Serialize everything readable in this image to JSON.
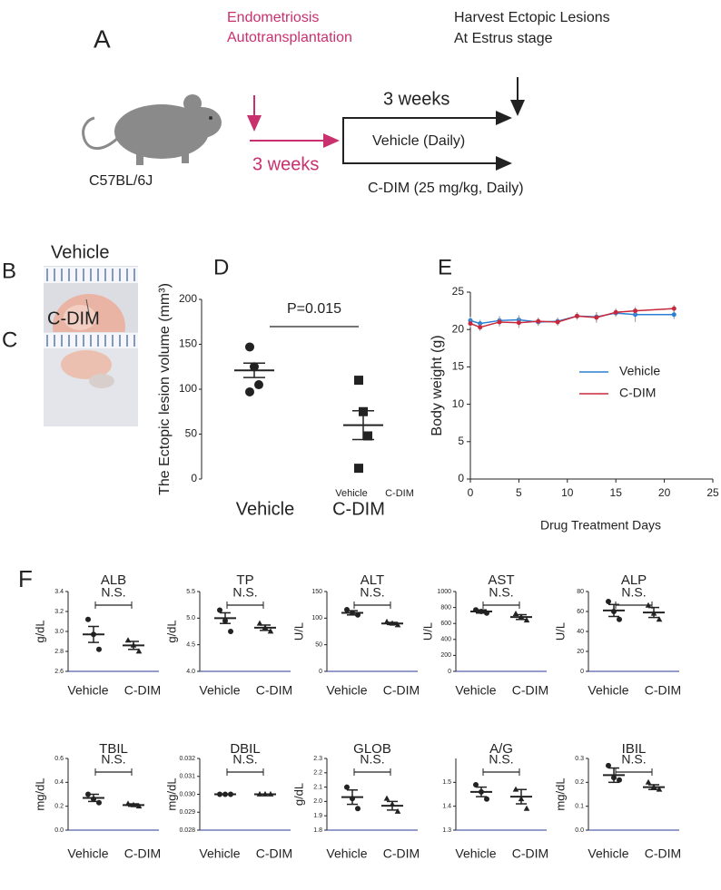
{
  "panel_a": {
    "label": "A",
    "procedure": [
      "Endometriosis",
      "Autotransplantation"
    ],
    "harvest": [
      "Harvest Ectopic Lesions",
      "At Estrus stage"
    ],
    "strain": "C57BL/6J",
    "pre_period": "3 weeks",
    "treatment_period": "3 weeks",
    "vehicle_arm": "Vehicle (Daily)",
    "cdim_arm": "C-DIM (25 mg/kg, Daily)"
  },
  "panel_b": {
    "label": "B",
    "title": "Vehicle"
  },
  "panel_c": {
    "label": "C",
    "title": "C-DIM"
  },
  "panel_f": {
    "label": "F"
  },
  "chart_data": [
    {
      "type": "dotplot",
      "panel": "D",
      "y_label": "The Ectopic lesion volume (mm³)",
      "annotation": "P=0.015",
      "categories": [
        "Vehicle",
        "C-DIM"
      ],
      "group_labels": [
        "Vehicle",
        "C-DIM"
      ],
      "markers": [
        "circle",
        "square"
      ],
      "ylim": [
        0,
        200
      ],
      "yticks": [
        0,
        50,
        100,
        150,
        200
      ],
      "groups": [
        {
          "points": [
            147,
            125,
            105,
            97
          ],
          "mean": 121,
          "sem": 8
        },
        {
          "points": [
            110,
            75,
            48,
            12
          ],
          "mean": 60,
          "sem": 16
        }
      ]
    },
    {
      "type": "line",
      "panel": "E",
      "x_label": "Drug Treatment Days",
      "y_label": "Body weight (g)",
      "legend": "center-right",
      "x": [
        0,
        1,
        3,
        5,
        7,
        9,
        11,
        13,
        15,
        17,
        21
      ],
      "xlim": [
        0,
        25
      ],
      "xticks": [
        0,
        5,
        10,
        15,
        20,
        25
      ],
      "ylim": [
        0,
        25
      ],
      "yticks": [
        0,
        5,
        10,
        15,
        20,
        25
      ],
      "series": [
        {
          "name": "Vehicle",
          "color": "#2a7fd4",
          "values": [
            21.2,
            20.8,
            21.2,
            21.3,
            21.0,
            21.1,
            21.8,
            21.7,
            22.2,
            22.0,
            22.0
          ],
          "errors": [
            0.5,
            0.5,
            0.6,
            0.6,
            0.5,
            0.5,
            0.5,
            0.6,
            0.5,
            1.0,
            0.6
          ]
        },
        {
          "name": "C-DIM",
          "color": "#c8283c",
          "values": [
            20.8,
            20.3,
            21.0,
            20.9,
            21.1,
            21.0,
            21.8,
            21.6,
            22.3,
            22.5,
            22.8
          ],
          "errors": [
            0.5,
            0.5,
            0.6,
            0.7,
            0.5,
            0.5,
            0.5,
            0.7,
            0.5,
            0.5,
            0.5
          ]
        }
      ]
    },
    {
      "type": "dotplot",
      "title": "ALB",
      "y_label": "g/dL",
      "annotation": "N.S.",
      "categories": [
        "Vehicle",
        "C-DIM"
      ],
      "markers": [
        "circle",
        "triangle"
      ],
      "ylim": [
        2.6,
        3.4
      ],
      "yticks": [
        2.6,
        2.8,
        {
          "value": 3,
          "label": "3.0"
        },
        3.2,
        3.4
      ],
      "groups": [
        {
          "points": [
            3.12,
            2.97,
            2.82
          ],
          "mean": 2.97,
          "sem": 0.08
        },
        {
          "points": [
            2.91,
            2.86,
            2.8
          ],
          "mean": 2.86,
          "sem": 0.04
        }
      ]
    },
    {
      "type": "dotplot",
      "title": "TP",
      "y_label": "g/dL",
      "annotation": "N.S.",
      "categories": [
        "Vehicle",
        "C-DIM"
      ],
      "markers": [
        "circle",
        "triangle"
      ],
      "ylim": [
        4,
        5.5
      ],
      "yticks": [
        {
          "value": 4,
          "label": "4.0"
        },
        4.5,
        {
          "value": 5,
          "label": "5.0"
        },
        5.5
      ],
      "groups": [
        {
          "points": [
            5.15,
            4.95,
            4.75
          ],
          "mean": 5.0,
          "sem": 0.1
        },
        {
          "points": [
            4.9,
            4.82,
            4.75
          ],
          "mean": 4.82,
          "sem": 0.05
        }
      ]
    },
    {
      "type": "dotplot",
      "title": "ALT",
      "y_label": "U/L",
      "annotation": "N.S.",
      "categories": [
        "Vehicle",
        "C-DIM"
      ],
      "markers": [
        "circle",
        "triangle"
      ],
      "ylim": [
        0,
        150
      ],
      "yticks": [
        0,
        50,
        100,
        150
      ],
      "groups": [
        {
          "points": [
            116,
            110,
            106
          ],
          "mean": 110,
          "sem": 4
        },
        {
          "points": [
            93,
            90,
            87
          ],
          "mean": 90,
          "sem": 2
        }
      ]
    },
    {
      "type": "dotplot",
      "title": "AST",
      "y_label": "U/L",
      "annotation": "N.S.",
      "categories": [
        "Vehicle",
        "C-DIM"
      ],
      "markers": [
        "circle",
        "triangle"
      ],
      "ylim": [
        0,
        1000
      ],
      "yticks": [
        0,
        200,
        400,
        600,
        800,
        1000
      ],
      "groups": [
        {
          "points": [
            770,
            750,
            730
          ],
          "mean": 750,
          "sem": 20
        },
        {
          "points": [
            720,
            680,
            640
          ],
          "mean": 680,
          "sem": 30
        }
      ]
    },
    {
      "type": "dotplot",
      "title": "ALP",
      "y_label": "U/L",
      "annotation": "N.S.",
      "categories": [
        "Vehicle",
        "C-DIM"
      ],
      "markers": [
        "circle",
        "triangle"
      ],
      "ylim": [
        0,
        80
      ],
      "yticks": [
        0,
        20,
        40,
        60,
        80
      ],
      "groups": [
        {
          "points": [
            70,
            60,
            52
          ],
          "mean": 61,
          "sem": 6
        },
        {
          "points": [
            66,
            58,
            52
          ],
          "mean": 59,
          "sem": 5
        }
      ]
    },
    {
      "type": "dotplot",
      "title": "TBIL",
      "y_label": "mg/dL",
      "annotation": "N.S.",
      "categories": [
        "Vehicle",
        "C-DIM"
      ],
      "markers": [
        "circle",
        "triangle"
      ],
      "ylim": [
        0,
        0.6
      ],
      "yticks": [
        {
          "value": 0,
          "label": "0.0"
        },
        0.2,
        0.4,
        0.6
      ],
      "groups": [
        {
          "points": [
            0.3,
            0.26,
            0.23
          ],
          "mean": 0.27,
          "sem": 0.03
        },
        {
          "points": [
            0.22,
            0.21,
            0.2
          ],
          "mean": 0.21,
          "sem": 0.01
        }
      ]
    },
    {
      "type": "dotplot",
      "title": "DBIL",
      "y_label": "mg/dL",
      "annotation": "N.S.",
      "categories": [
        "Vehicle",
        "C-DIM"
      ],
      "markers": [
        "circle",
        "triangle"
      ],
      "ylim": [
        0.028,
        0.032
      ],
      "yticks": [
        0.028,
        0.029,
        {
          "value": 0.03,
          "label": "0.030"
        },
        0.031,
        0.032
      ],
      "groups": [
        {
          "points": [
            0.03,
            0.03,
            0.03
          ],
          "mean": 0.03,
          "sem": 0
        },
        {
          "points": [
            0.03,
            0.03,
            0.03
          ],
          "mean": 0.03,
          "sem": 0
        }
      ]
    },
    {
      "type": "dotplot",
      "title": "GLOB",
      "y_label": "g/dL",
      "annotation": "N.S.",
      "categories": [
        "Vehicle",
        "C-DIM"
      ],
      "markers": [
        "circle",
        "triangle"
      ],
      "ylim": [
        1.8,
        2.3
      ],
      "yticks": [
        1.8,
        1.9,
        {
          "value": 2,
          "label": "2.0"
        },
        2.1,
        2.2,
        2.3
      ],
      "groups": [
        {
          "points": [
            2.1,
            2.02,
            1.95
          ],
          "mean": 2.03,
          "sem": 0.05
        },
        {
          "points": [
            2.02,
            1.98,
            1.93
          ],
          "mean": 1.97,
          "sem": 0.03
        }
      ]
    },
    {
      "type": "dotplot",
      "title": "A/G",
      "annotation": "N.S.",
      "categories": [
        "Vehicle",
        "C-DIM"
      ],
      "markers": [
        "circle",
        "triangle"
      ],
      "ylim": [
        1.3,
        1.6
      ],
      "yticks": [
        1.3,
        1.4,
        1.5
      ],
      "groups": [
        {
          "points": [
            1.49,
            1.46,
            1.43
          ],
          "mean": 1.46,
          "sem": 0.02
        },
        {
          "points": [
            1.47,
            1.43,
            1.39
          ],
          "mean": 1.44,
          "sem": 0.03
        }
      ]
    },
    {
      "type": "dotplot",
      "title": "IBIL",
      "y_label": "mg/dL",
      "annotation": "N.S.",
      "categories": [
        "Vehicle",
        "C-DIM"
      ],
      "markers": [
        "circle",
        "triangle"
      ],
      "ylim": [
        0,
        0.3
      ],
      "yticks": [
        {
          "value": 0,
          "label": "0.0"
        },
        0.1,
        0.2,
        0.3
      ],
      "groups": [
        {
          "points": [
            0.27,
            0.22,
            0.21
          ],
          "mean": 0.23,
          "sem": 0.03
        },
        {
          "points": [
            0.2,
            0.18,
            0.17
          ],
          "mean": 0.18,
          "sem": 0.01
        }
      ]
    }
  ]
}
